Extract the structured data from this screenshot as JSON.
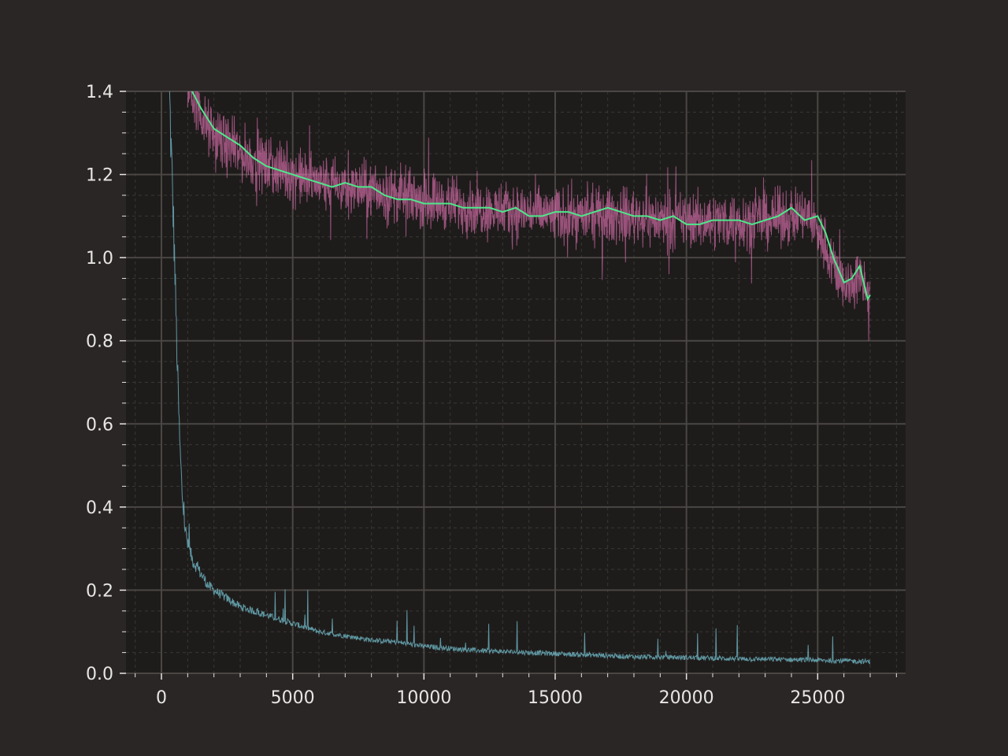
{
  "chart_data": {
    "type": "line",
    "title": "",
    "xlabel": "",
    "ylabel": "",
    "xlim": [
      -1350,
      28350
    ],
    "ylim": [
      0,
      1.4
    ],
    "grid": true,
    "minor_grid": true,
    "legend": "none",
    "x_ticks": [
      0,
      5000,
      10000,
      15000,
      20000,
      25000
    ],
    "x_tick_labels": [
      "0",
      "5000",
      "10000",
      "15000",
      "20000",
      "25000"
    ],
    "y_ticks": [
      0.0,
      0.2,
      0.4,
      0.6,
      0.8,
      1.0,
      1.2,
      1.4
    ],
    "y_tick_labels": [
      "0.0",
      "0.2",
      "0.4",
      "0.6",
      "0.8",
      "1.0",
      "1.2",
      "1.4"
    ],
    "colors": {
      "background": "#292625",
      "plot_area": "#1e1c1b",
      "grid_major": "#4a4644",
      "grid_minor": "#3a3735",
      "tick_text": "#e8e6e3",
      "raw_series": "#ff7fc8",
      "smoothed_series": "#4ee88a",
      "low_series": "#6fb6c4"
    },
    "series": [
      {
        "style": "raw-noisy",
        "color": "#ff7fc8",
        "x": [
          1000,
          1500,
          2000,
          3000,
          4000,
          5000,
          6000,
          7000,
          8000,
          9000,
          10000,
          11000,
          12000,
          13000,
          14000,
          15000,
          16000,
          17000,
          18000,
          19000,
          20000,
          21000,
          22000,
          23000,
          24000,
          24600,
          25000,
          25500,
          26000,
          26500,
          27000
        ],
        "y": [
          1.42,
          1.34,
          1.29,
          1.25,
          1.22,
          1.2,
          1.18,
          1.17,
          1.16,
          1.15,
          1.14,
          1.13,
          1.12,
          1.11,
          1.11,
          1.1,
          1.1,
          1.1,
          1.1,
          1.09,
          1.09,
          1.09,
          1.09,
          1.09,
          1.1,
          1.1,
          1.07,
          1.0,
          0.93,
          0.95,
          0.91
        ],
        "noise_band": 0.06
      },
      {
        "style": "smoothed",
        "color": "#4ee88a",
        "x": [
          1000,
          1500,
          2000,
          2500,
          3000,
          3500,
          4000,
          4500,
          5000,
          5500,
          6000,
          6500,
          7000,
          7500,
          8000,
          8500,
          9000,
          9500,
          10000,
          10500,
          11000,
          11500,
          12000,
          12500,
          13000,
          13500,
          14000,
          14500,
          15000,
          15500,
          16000,
          16500,
          17000,
          17500,
          18000,
          18500,
          19000,
          19500,
          20000,
          20500,
          21000,
          21500,
          22000,
          22500,
          23000,
          23500,
          24000,
          24500,
          25000,
          25300,
          25600,
          26000,
          26300,
          26600,
          26900,
          27000
        ],
        "y": [
          1.42,
          1.36,
          1.31,
          1.29,
          1.27,
          1.24,
          1.22,
          1.21,
          1.2,
          1.19,
          1.18,
          1.17,
          1.18,
          1.17,
          1.17,
          1.15,
          1.14,
          1.14,
          1.13,
          1.13,
          1.13,
          1.12,
          1.12,
          1.12,
          1.11,
          1.12,
          1.1,
          1.1,
          1.11,
          1.11,
          1.1,
          1.11,
          1.12,
          1.11,
          1.1,
          1.1,
          1.09,
          1.1,
          1.08,
          1.08,
          1.09,
          1.09,
          1.09,
          1.08,
          1.09,
          1.1,
          1.12,
          1.09,
          1.1,
          1.06,
          1.0,
          0.94,
          0.95,
          0.98,
          0.9,
          0.91
        ]
      },
      {
        "style": "raw-thin",
        "color": "#6fb6c4",
        "x": [
          300,
          400,
          500,
          600,
          700,
          800,
          900,
          1000,
          1100,
          1200,
          1400,
          1600,
          1800,
          2000,
          2500,
          3000,
          3500,
          4000,
          5000,
          6000,
          7000,
          8000,
          9000,
          10000,
          12000,
          14000,
          16000,
          18000,
          20000,
          22000,
          24000,
          26000,
          27000
        ],
        "y": [
          1.4,
          1.2,
          1.0,
          0.75,
          0.55,
          0.42,
          0.35,
          0.31,
          0.29,
          0.27,
          0.25,
          0.23,
          0.21,
          0.2,
          0.18,
          0.16,
          0.15,
          0.14,
          0.12,
          0.1,
          0.09,
          0.08,
          0.075,
          0.065,
          0.055,
          0.05,
          0.045,
          0.04,
          0.038,
          0.035,
          0.033,
          0.03,
          0.028
        ]
      }
    ]
  }
}
